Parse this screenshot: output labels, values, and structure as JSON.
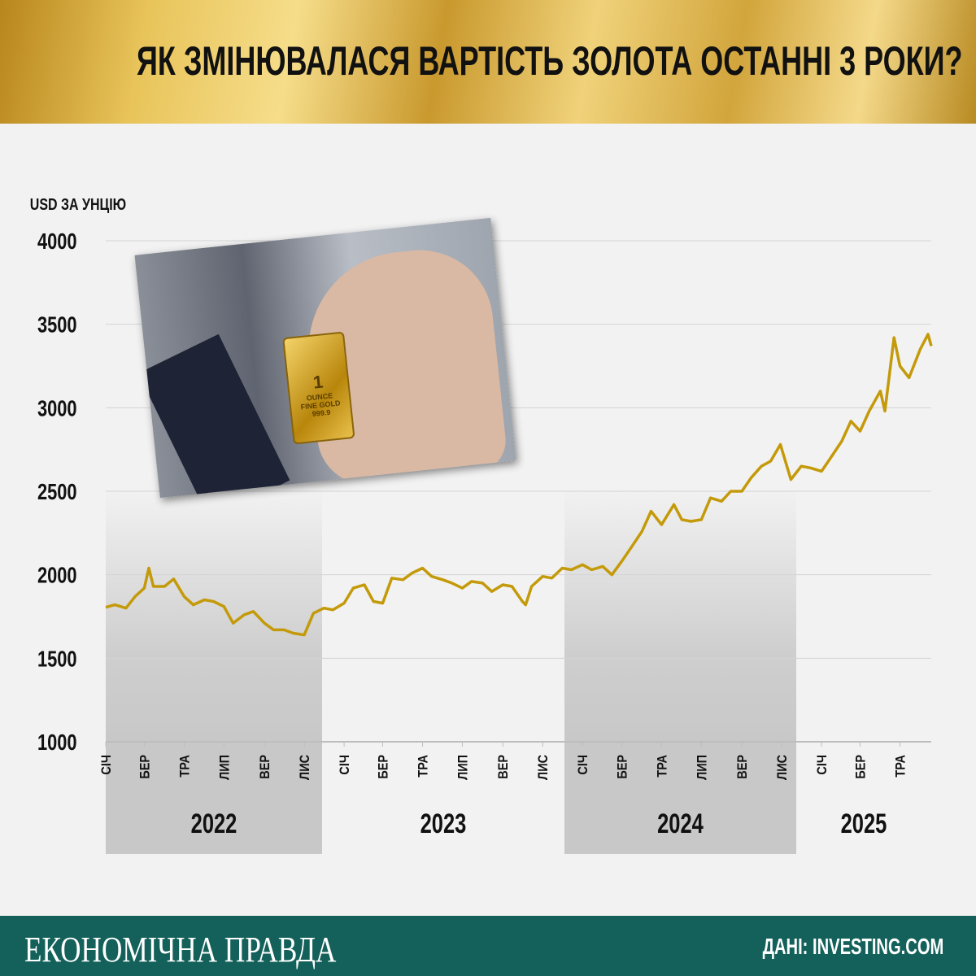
{
  "header": {
    "title": "ЯК ЗМІНЮВАЛАСЯ ВАРТІСТЬ ЗОЛОТА ОСТАННІ 3 РОКИ?"
  },
  "photo": {
    "gold_bar_text": [
      "1",
      "OUNCE",
      "FINE GOLD",
      "999.9"
    ]
  },
  "footer": {
    "brand": "ЕКОНОМІЧНА ПРАВДА",
    "source": "ДАНІ: INVESTING.COM"
  },
  "colors": {
    "line": "#c49a0a",
    "footer": "#13615a",
    "band": "#c8c8c8",
    "grid": "#d4d4d4"
  },
  "chart_data": {
    "type": "line",
    "ylabel": "USD ЗА УНЦІЮ",
    "ylim": [
      1000,
      4000
    ],
    "yticks": [
      1000,
      1500,
      2000,
      2500,
      3000,
      3500,
      4000
    ],
    "xlim": [
      "2022-01-01",
      "2025-06-18"
    ],
    "month_ticks": [
      {
        "date": "2022-01-01",
        "label": "СІЧ"
      },
      {
        "date": "2022-03-01",
        "label": "БЕР"
      },
      {
        "date": "2022-05-01",
        "label": "ТРА"
      },
      {
        "date": "2022-07-01",
        "label": "ЛИП"
      },
      {
        "date": "2022-09-01",
        "label": "ВЕР"
      },
      {
        "date": "2022-11-01",
        "label": "ЛИС"
      },
      {
        "date": "2023-01-01",
        "label": "СІЧ"
      },
      {
        "date": "2023-03-01",
        "label": "БЕР"
      },
      {
        "date": "2023-05-01",
        "label": "ТРА"
      },
      {
        "date": "2023-07-01",
        "label": "ЛИП"
      },
      {
        "date": "2023-09-01",
        "label": "ВЕР"
      },
      {
        "date": "2023-11-01",
        "label": "ЛИС"
      },
      {
        "date": "2024-01-01",
        "label": "СІЧ"
      },
      {
        "date": "2024-03-01",
        "label": "БЕР"
      },
      {
        "date": "2024-05-01",
        "label": "ТРА"
      },
      {
        "date": "2024-07-01",
        "label": "ЛИП"
      },
      {
        "date": "2024-09-01",
        "label": "ВЕР"
      },
      {
        "date": "2024-11-01",
        "label": "ЛИС"
      },
      {
        "date": "2025-01-01",
        "label": "СІЧ"
      },
      {
        "date": "2025-03-01",
        "label": "БЕР"
      },
      {
        "date": "2025-05-01",
        "label": "ТРА"
      }
    ],
    "years": [
      {
        "label": "2022",
        "shaded": true
      },
      {
        "label": "2023",
        "shaded": false
      },
      {
        "label": "2024",
        "shaded": true
      },
      {
        "label": "2025",
        "shaded": false
      }
    ],
    "grid": true,
    "series": [
      {
        "points": [
          [
            "2022-01-01",
            1805
          ],
          [
            "2022-01-15",
            1820
          ],
          [
            "2022-02-01",
            1800
          ],
          [
            "2022-02-15",
            1870
          ],
          [
            "2022-03-01",
            1920
          ],
          [
            "2022-03-08",
            2040
          ],
          [
            "2022-03-15",
            1930
          ],
          [
            "2022-04-01",
            1930
          ],
          [
            "2022-04-15",
            1975
          ],
          [
            "2022-05-01",
            1870
          ],
          [
            "2022-05-15",
            1820
          ],
          [
            "2022-06-01",
            1850
          ],
          [
            "2022-06-15",
            1840
          ],
          [
            "2022-07-01",
            1810
          ],
          [
            "2022-07-15",
            1710
          ],
          [
            "2022-08-01",
            1760
          ],
          [
            "2022-08-15",
            1780
          ],
          [
            "2022-09-01",
            1710
          ],
          [
            "2022-09-15",
            1670
          ],
          [
            "2022-10-01",
            1670
          ],
          [
            "2022-10-15",
            1650
          ],
          [
            "2022-11-01",
            1640
          ],
          [
            "2022-11-15",
            1770
          ],
          [
            "2022-12-01",
            1800
          ],
          [
            "2022-12-15",
            1790
          ],
          [
            "2023-01-01",
            1830
          ],
          [
            "2023-01-15",
            1920
          ],
          [
            "2023-02-01",
            1940
          ],
          [
            "2023-02-15",
            1840
          ],
          [
            "2023-03-01",
            1830
          ],
          [
            "2023-03-15",
            1980
          ],
          [
            "2023-04-01",
            1970
          ],
          [
            "2023-04-15",
            2010
          ],
          [
            "2023-05-01",
            2040
          ],
          [
            "2023-05-15",
            1990
          ],
          [
            "2023-06-01",
            1970
          ],
          [
            "2023-06-15",
            1950
          ],
          [
            "2023-07-01",
            1920
          ],
          [
            "2023-07-15",
            1960
          ],
          [
            "2023-08-01",
            1950
          ],
          [
            "2023-08-15",
            1900
          ],
          [
            "2023-09-01",
            1940
          ],
          [
            "2023-09-15",
            1930
          ],
          [
            "2023-10-01",
            1840
          ],
          [
            "2023-10-06",
            1820
          ],
          [
            "2023-10-15",
            1930
          ],
          [
            "2023-11-01",
            1990
          ],
          [
            "2023-11-15",
            1980
          ],
          [
            "2023-12-01",
            2040
          ],
          [
            "2023-12-15",
            2030
          ],
          [
            "2024-01-01",
            2060
          ],
          [
            "2024-01-15",
            2030
          ],
          [
            "2024-02-01",
            2050
          ],
          [
            "2024-02-15",
            2000
          ],
          [
            "2024-03-01",
            2080
          ],
          [
            "2024-03-15",
            2160
          ],
          [
            "2024-04-01",
            2260
          ],
          [
            "2024-04-15",
            2380
          ],
          [
            "2024-05-01",
            2300
          ],
          [
            "2024-05-20",
            2420
          ],
          [
            "2024-06-01",
            2330
          ],
          [
            "2024-06-15",
            2320
          ],
          [
            "2024-07-01",
            2330
          ],
          [
            "2024-07-15",
            2460
          ],
          [
            "2024-08-01",
            2440
          ],
          [
            "2024-08-15",
            2500
          ],
          [
            "2024-09-01",
            2500
          ],
          [
            "2024-09-15",
            2580
          ],
          [
            "2024-10-01",
            2650
          ],
          [
            "2024-10-15",
            2680
          ],
          [
            "2024-10-30",
            2780
          ],
          [
            "2024-11-15",
            2570
          ],
          [
            "2024-12-01",
            2650
          ],
          [
            "2024-12-15",
            2640
          ],
          [
            "2025-01-01",
            2620
          ],
          [
            "2025-01-15",
            2700
          ],
          [
            "2025-02-01",
            2800
          ],
          [
            "2025-02-15",
            2920
          ],
          [
            "2025-03-01",
            2860
          ],
          [
            "2025-03-15",
            2980
          ],
          [
            "2025-04-01",
            3100
          ],
          [
            "2025-04-08",
            2980
          ],
          [
            "2025-04-22",
            3420
          ],
          [
            "2025-05-01",
            3250
          ],
          [
            "2025-05-15",
            3180
          ],
          [
            "2025-06-01",
            3350
          ],
          [
            "2025-06-13",
            3440
          ],
          [
            "2025-06-18",
            3370
          ]
        ]
      }
    ]
  }
}
